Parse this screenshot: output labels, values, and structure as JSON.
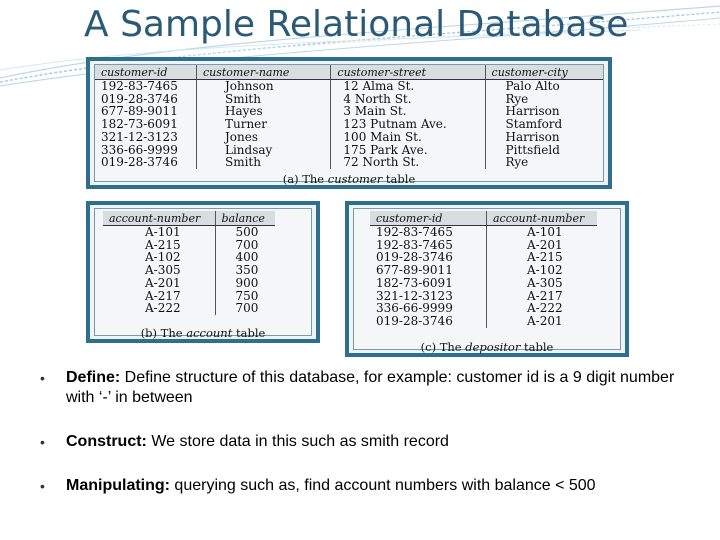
{
  "slide": {
    "title": "A Sample Relational Database"
  },
  "customer_table": {
    "headers": [
      "customer-id",
      "customer-name",
      "customer-street",
      "customer-city"
    ],
    "rows": [
      [
        "192-83-7465",
        "Johnson",
        "12 Alma St.",
        "Palo Alto"
      ],
      [
        "019-28-3746",
        "Smith",
        "4 North St.",
        "Rye"
      ],
      [
        "677-89-9011",
        "Hayes",
        "3 Main St.",
        "Harrison"
      ],
      [
        "182-73-6091",
        "Turner",
        "123 Putnam Ave.",
        "Stamford"
      ],
      [
        "321-12-3123",
        "Jones",
        "100 Main St.",
        "Harrison"
      ],
      [
        "336-66-9999",
        "Lindsay",
        "175 Park Ave.",
        "Pittsfield"
      ],
      [
        "019-28-3746",
        "Smith",
        "72 North St.",
        "Rye"
      ]
    ],
    "caption_prefix": "(a) The ",
    "caption_name": "customer",
    "caption_suffix": " table"
  },
  "account_table": {
    "headers": [
      "account-number",
      "balance"
    ],
    "rows": [
      [
        "A-101",
        "500"
      ],
      [
        "A-215",
        "700"
      ],
      [
        "A-102",
        "400"
      ],
      [
        "A-305",
        "350"
      ],
      [
        "A-201",
        "900"
      ],
      [
        "A-217",
        "750"
      ],
      [
        "A-222",
        "700"
      ]
    ],
    "caption_prefix": "(b) The ",
    "caption_name": "account",
    "caption_suffix": " table"
  },
  "depositor_table": {
    "headers": [
      "customer-id",
      "account-number"
    ],
    "rows": [
      [
        "192-83-7465",
        "A-101"
      ],
      [
        "192-83-7465",
        "A-201"
      ],
      [
        "019-28-3746",
        "A-215"
      ],
      [
        "677-89-9011",
        "A-102"
      ],
      [
        "182-73-6091",
        "A-305"
      ],
      [
        "321-12-3123",
        "A-217"
      ],
      [
        "336-66-9999",
        "A-222"
      ],
      [
        "019-28-3746",
        "A-201"
      ]
    ],
    "caption_prefix": "(c) The ",
    "caption_name": "depositor",
    "caption_suffix": " table"
  },
  "bullets": [
    {
      "term": "Define:",
      "text": " Define structure of this database, for example: customer id is a 9 digit number with ‘-’ in between"
    },
    {
      "term": "Construct:",
      "text": " We store data in this such as smith record"
    },
    {
      "term": "Manipulating:",
      "text": " querying such as, find account numbers with balance < 500"
    }
  ],
  "colors": {
    "title": "#2a5a78",
    "panel_border": "#2d6f8c",
    "swoosh": "#9ec6da"
  }
}
